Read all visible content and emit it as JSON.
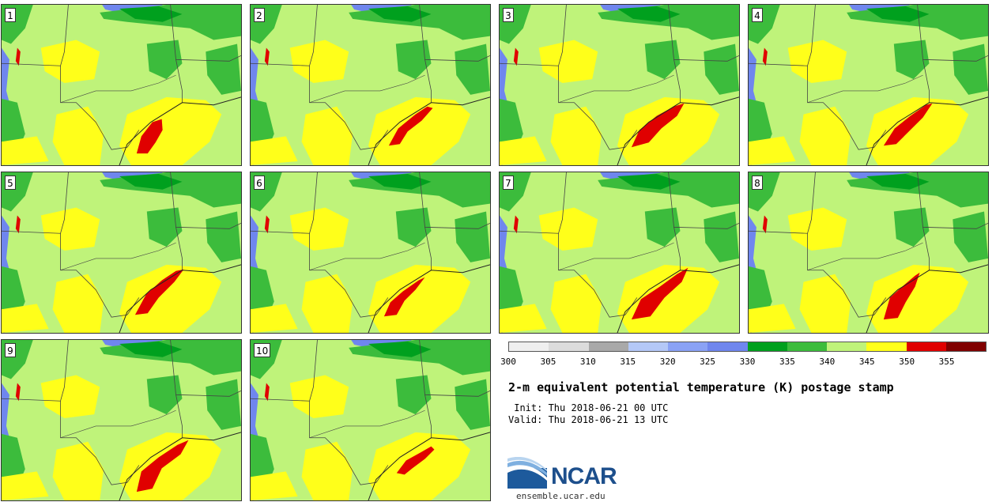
{
  "panels": [
    {
      "label": "1"
    },
    {
      "label": "2"
    },
    {
      "label": "3"
    },
    {
      "label": "4"
    },
    {
      "label": "5"
    },
    {
      "label": "6"
    },
    {
      "label": "7"
    },
    {
      "label": "8"
    },
    {
      "label": "9"
    },
    {
      "label": "10"
    }
  ],
  "colorbar": {
    "colors": [
      "#efefef",
      "#dcdcdc",
      "#a9a9a9",
      "#b4c8f7",
      "#8aa2f5",
      "#6f86ee",
      "#00a01e",
      "#3cbc3c",
      "#bff37a",
      "#ffff1a",
      "#e00000",
      "#800000"
    ],
    "ticks": [
      "300",
      "305",
      "310",
      "315",
      "320",
      "325",
      "330",
      "335",
      "340",
      "345",
      "350",
      "355"
    ]
  },
  "title": "2-m equivalent potential temperature (K) postage stamp",
  "init": " Init: Thu 2018-06-21 00 UTC",
  "valid": "Valid: Thu 2018-06-21 13 UTC",
  "logo": {
    "text": "NCAR"
  },
  "url": "ensemble.ucar.edu"
}
